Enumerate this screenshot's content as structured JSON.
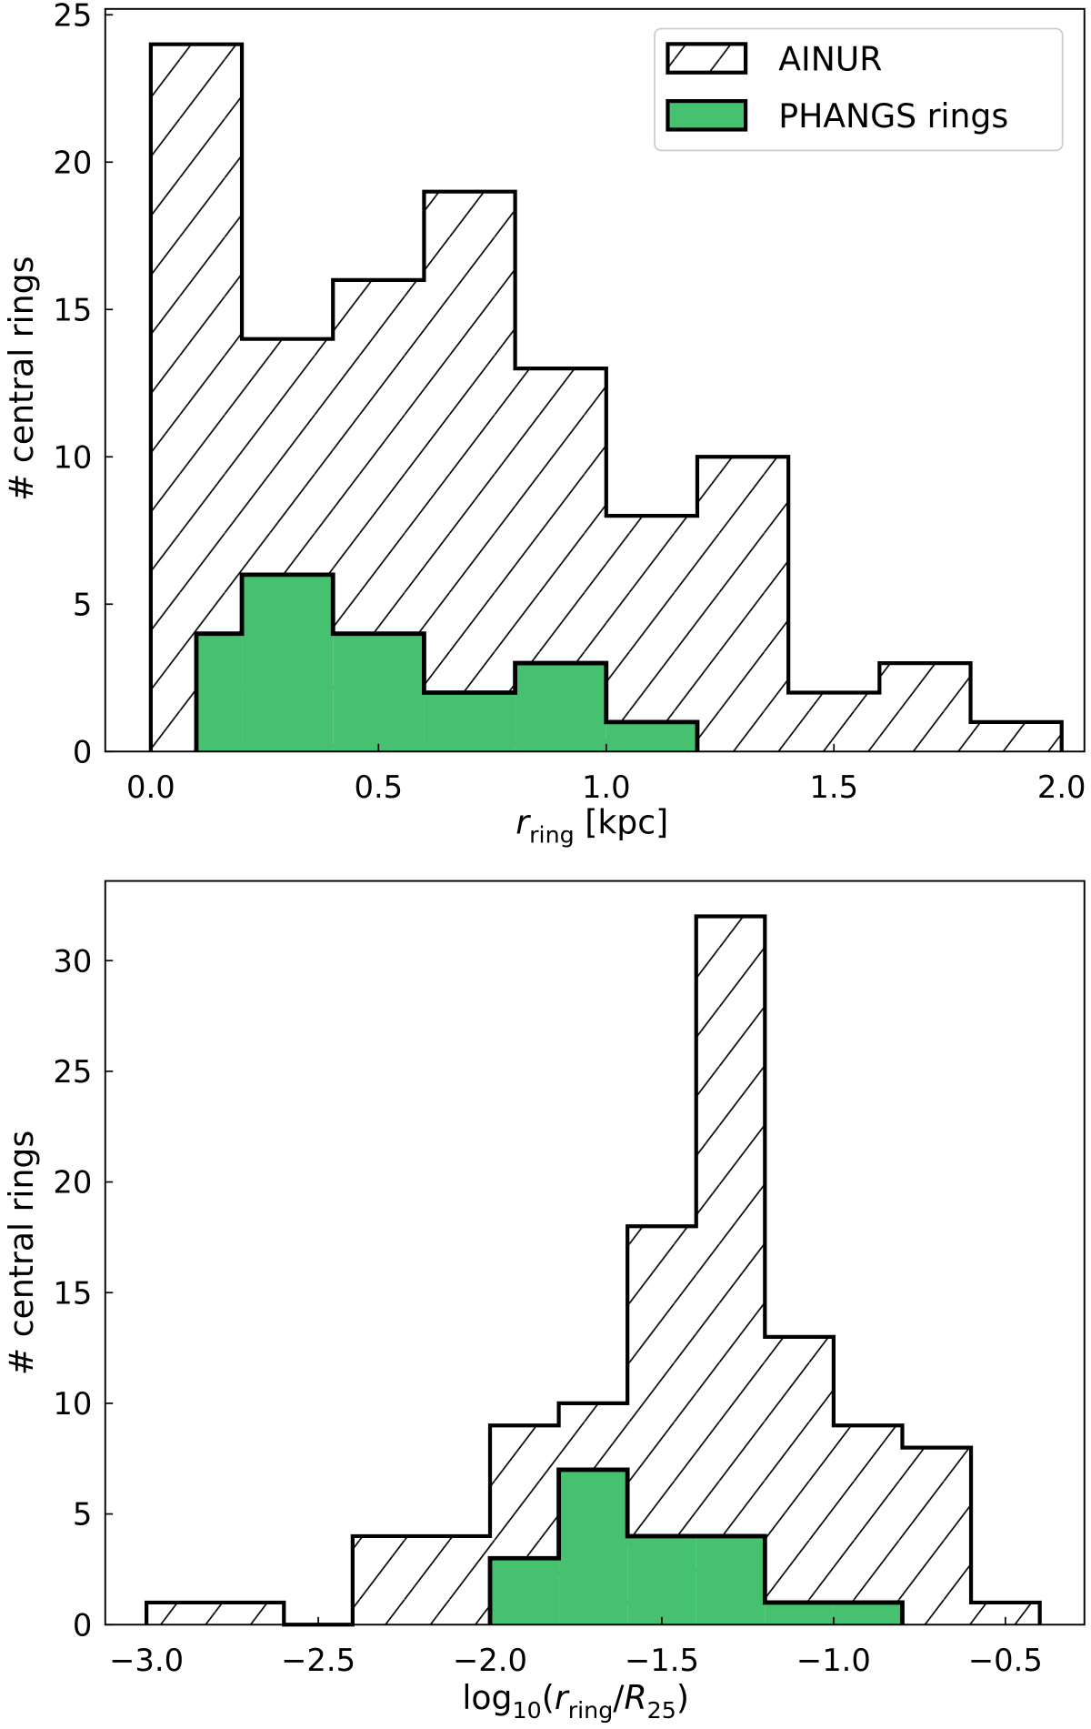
{
  "colors": {
    "phangs": "#46c170",
    "ainur_fill": "#ffffff",
    "edge": "#000000"
  },
  "legend": {
    "placement": "top-right",
    "items": [
      "AINUR",
      "PHANGS rings"
    ]
  },
  "chart_data": [
    {
      "type": "bar",
      "histtype": "step-filled",
      "xlabel_main": "r",
      "xlabel_sub": "ring",
      "xlabel_rest": " [kpc]",
      "ylabel": "# central rings",
      "xlim": [
        -0.1,
        2.05
      ],
      "ylim": [
        0,
        25.2
      ],
      "xticks": [
        0.0,
        0.5,
        1.0,
        1.5,
        2.0
      ],
      "xtick_labels": [
        "0.0",
        "0.5",
        "1.0",
        "1.5",
        "2.0"
      ],
      "yticks": [
        0,
        5,
        10,
        15,
        20,
        25
      ],
      "ytick_labels": [
        "0",
        "5",
        "10",
        "15",
        "20",
        "25"
      ],
      "series": [
        {
          "name": "AINUR",
          "style": "hatched",
          "bin_edges": [
            0.0,
            0.2,
            0.4,
            0.6,
            0.8,
            1.0,
            1.2,
            1.4,
            1.6,
            1.8,
            2.0
          ],
          "counts": [
            24,
            14,
            16,
            19,
            13,
            8,
            10,
            2,
            3,
            1
          ]
        },
        {
          "name": "PHANGS rings",
          "style": "filled",
          "bin_edges": [
            0.1,
            0.2,
            0.4,
            0.6,
            0.8,
            1.0,
            1.2
          ],
          "counts": [
            4,
            6,
            4,
            2,
            3,
            1
          ]
        }
      ]
    },
    {
      "type": "bar",
      "histtype": "step-filled",
      "xlabel_pre": "log",
      "xlabel_pre_sub": "10",
      "xlabel_open": "(",
      "xlabel_main": "r",
      "xlabel_sub": "ring",
      "xlabel_mid": "/",
      "xlabel_main2": "R",
      "xlabel_sub2": "25",
      "xlabel_close": ")",
      "ylabel": "# central rings",
      "xlim": [
        -3.12,
        -0.27
      ],
      "ylim": [
        0,
        33.6
      ],
      "xticks": [
        -3.0,
        -2.5,
        -2.0,
        -1.5,
        -1.0,
        -0.5
      ],
      "xtick_labels": [
        "−3.0",
        "−2.5",
        "−2.0",
        "−1.5",
        "−1.0",
        "−0.5"
      ],
      "yticks": [
        0,
        5,
        10,
        15,
        20,
        25,
        30
      ],
      "ytick_labels": [
        "0",
        "5",
        "10",
        "15",
        "20",
        "25",
        "30"
      ],
      "series": [
        {
          "name": "AINUR",
          "style": "hatched",
          "bin_edges": [
            -3.0,
            -2.8,
            -2.6,
            -2.4,
            -2.2,
            -2.0,
            -1.8,
            -1.6,
            -1.4,
            -1.2,
            -1.0,
            -0.8,
            -0.6,
            -0.4
          ],
          "counts": [
            1,
            1,
            0,
            4,
            4,
            9,
            10,
            18,
            32,
            13,
            9,
            8,
            1
          ]
        },
        {
          "name": "PHANGS rings",
          "style": "filled",
          "bin_edges": [
            -2.0,
            -1.8,
            -1.6,
            -1.4,
            -1.2,
            -1.0,
            -0.8
          ],
          "counts": [
            3,
            7,
            4,
            4,
            1,
            1
          ]
        }
      ]
    }
  ]
}
